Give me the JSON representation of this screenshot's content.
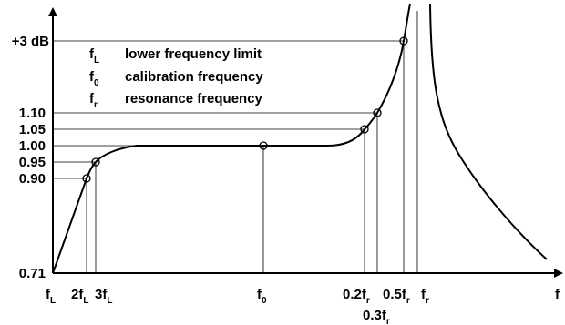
{
  "legend": [
    {
      "sym": "f",
      "sub": "L",
      "text": "lower frequency limit"
    },
    {
      "sym": "f",
      "sub": "0",
      "text": "calibration frequency"
    },
    {
      "sym": "f",
      "sub": "r",
      "text": "resonance frequency"
    }
  ],
  "y_ticks": [
    "+3 dB",
    "1.10",
    "1.05",
    "1.00",
    "0.95",
    "0.90",
    "0.71"
  ],
  "x_ticks": [
    {
      "pre": "f",
      "sub": "L"
    },
    {
      "pre": "2f",
      "sub": "L"
    },
    {
      "pre": "3f",
      "sub": "L"
    },
    {
      "pre": "f",
      "sub": "0"
    },
    {
      "pre": "0.2f",
      "sub": "r"
    },
    {
      "pre": "0.3f",
      "sub": "r"
    },
    {
      "pre": "0.5f",
      "sub": "r"
    },
    {
      "pre": "f",
      "sub": "r"
    }
  ],
  "x_axis_label": "f"
}
